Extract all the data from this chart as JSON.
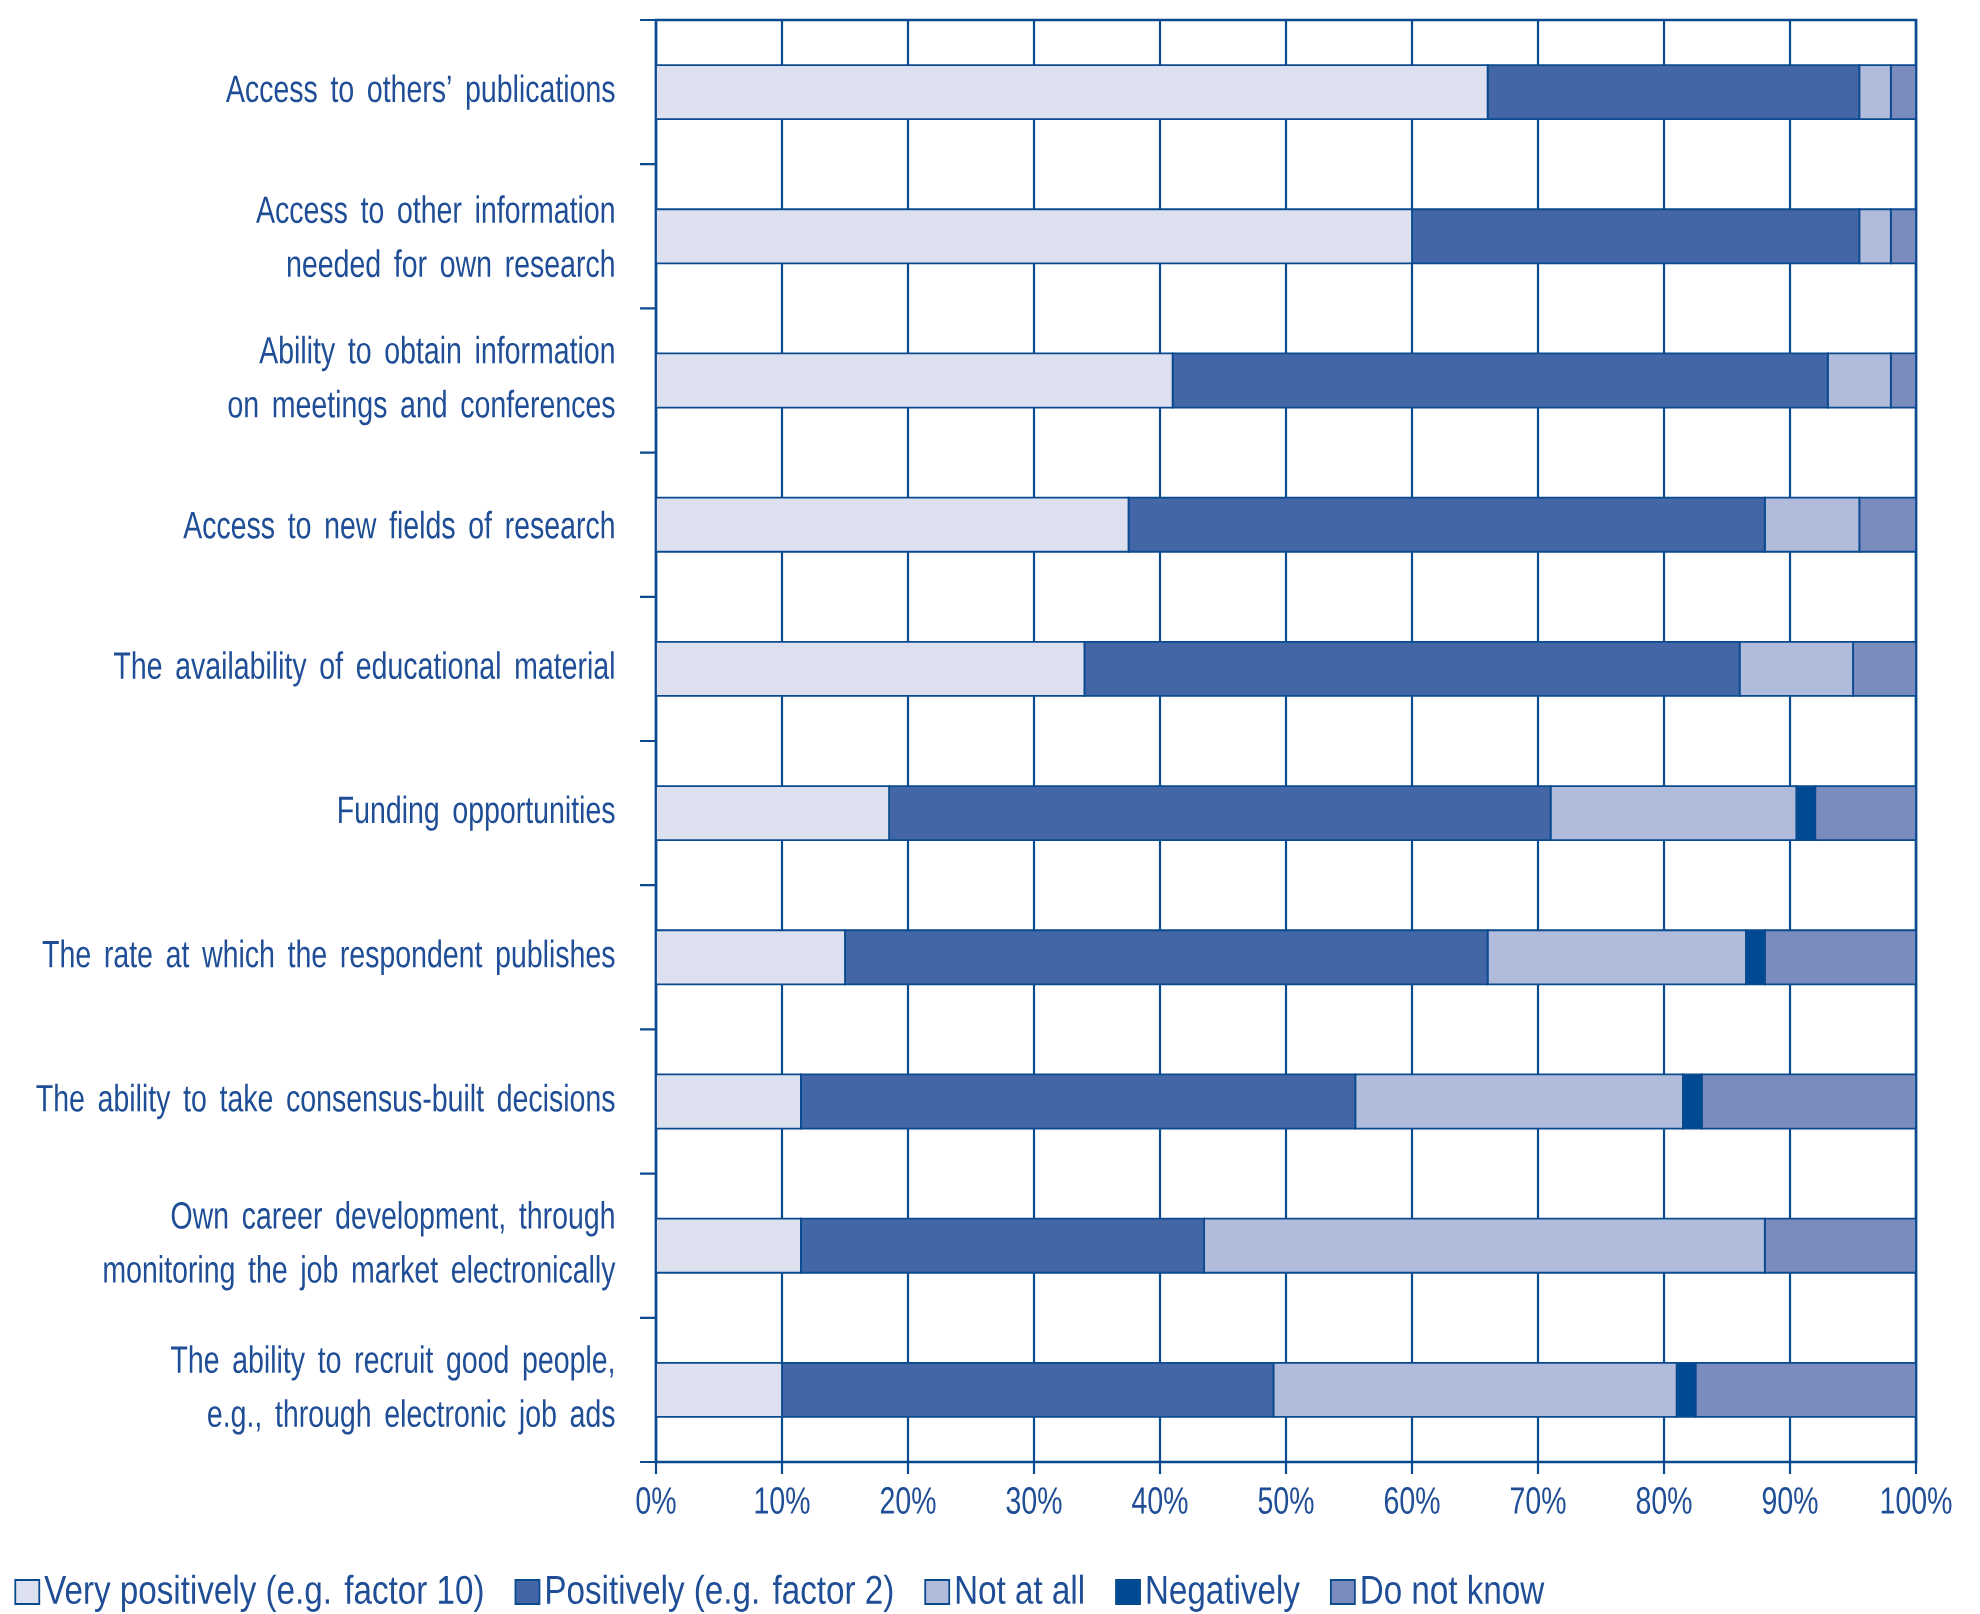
{
  "chart_data": {
    "type": "bar",
    "orientation": "horizontal",
    "stacked": true,
    "categories": [
      "Access to others’ publications",
      "Access to other information needed for own research",
      "Ability to obtain information on meetings and conferences",
      "Access to new fields of research",
      "The availability of educational material",
      "Funding opportunities",
      "The rate at which the respondent publishes",
      "The ability to take consensus-built decisions",
      "Own career development, through monitoring the job market electronically",
      "The ability to recruit good people, e.g., through electronic job ads"
    ],
    "series": [
      {
        "name": "Very positively (e.g. factor 10)",
        "color": "#dde1ef",
        "values": [
          66,
          60,
          41,
          37.5,
          34,
          18.5,
          15,
          11.5,
          11.5,
          10
        ]
      },
      {
        "name": "Positively (e.g. factor 2)",
        "color": "#4366a6",
        "values": [
          29.5,
          35.5,
          52,
          50.5,
          52,
          52.5,
          51,
          44,
          32,
          39
        ]
      },
      {
        "name": "Not at all",
        "color": "#b1bbdb",
        "values": [
          2.5,
          2.5,
          5,
          7.5,
          9,
          19.5,
          20.5,
          26,
          44.5,
          32
        ]
      },
      {
        "name": "Negatively",
        "color": "#004a93",
        "values": [
          0,
          0,
          0,
          0,
          0,
          1.5,
          1.5,
          1.5,
          0,
          1.5
        ]
      },
      {
        "name": "Do not know",
        "color": "#7a8bbd",
        "values": [
          2,
          2,
          2,
          4.5,
          5,
          8,
          12,
          17,
          12,
          17.5
        ]
      }
    ],
    "xlim": [
      0,
      100
    ],
    "xticks": [
      {
        "value": 0,
        "label": "0%"
      },
      {
        "value": 10,
        "label": "10%"
      },
      {
        "value": 20,
        "label": "20%"
      },
      {
        "value": 30,
        "label": "30%"
      },
      {
        "value": 40,
        "label": "40%"
      },
      {
        "value": 50,
        "label": "50%"
      },
      {
        "value": 60,
        "label": "60%"
      },
      {
        "value": 70,
        "label": "70%"
      },
      {
        "value": 80,
        "label": "80%"
      },
      {
        "value": 90,
        "label": "90%"
      },
      {
        "value": 100,
        "label": "100%"
      }
    ],
    "grid": "x",
    "legend": "bottom"
  }
}
